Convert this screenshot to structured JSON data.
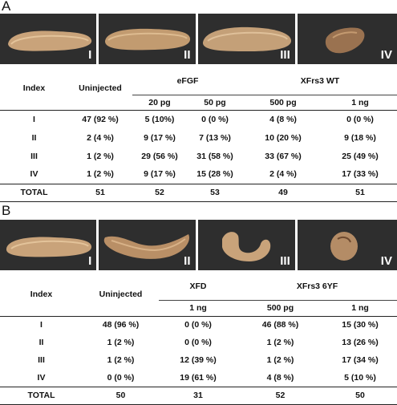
{
  "panelA": {
    "letter": "A",
    "images": [
      {
        "label": "I",
        "shape": "elongated-embryo"
      },
      {
        "label": "II",
        "shape": "elongated-embryo"
      },
      {
        "label": "III",
        "shape": "elongated-embryo"
      },
      {
        "label": "IV",
        "shape": "truncated-embryo"
      }
    ],
    "headers": {
      "index": "Index",
      "uninjected": "Uninjected",
      "group1": "eFGF",
      "group2": "XFrs3 WT",
      "g1d1": "20 pg",
      "g1d2": "50 pg",
      "g2d1": "500 pg",
      "g2d2": "1 ng"
    },
    "rows": [
      {
        "index": "I",
        "uninj": "47 (92 %)",
        "c1": "5 (10%)",
        "c2": "0 (0 %)",
        "c3": "4 (8 %)",
        "c4": "0 (0 %)"
      },
      {
        "index": "II",
        "uninj": "2 (4 %)",
        "c1": "9 (17 %)",
        "c2": "7 (13 %)",
        "c3": "10 (20 %)",
        "c4": "9 (18 %)"
      },
      {
        "index": "III",
        "uninj": "1 (2 %)",
        "c1": "29 (56 %)",
        "c2": "31 (58 %)",
        "c3": "33 (67 %)",
        "c4": "25 (49 %)"
      },
      {
        "index": "IV",
        "uninj": "1 (2 %)",
        "c1": "9 (17 %)",
        "c2": "15 (28 %)",
        "c3": "2 (4 %)",
        "c4": "17 (33 %)"
      }
    ],
    "total": {
      "index": "TOTAL",
      "uninj": "51",
      "c1": "52",
      "c2": "53",
      "c3": "49",
      "c4": "51"
    }
  },
  "panelB": {
    "letter": "B",
    "images": [
      {
        "label": "I",
        "shape": "elongated-embryo"
      },
      {
        "label": "II",
        "shape": "bent-embryo"
      },
      {
        "label": "III",
        "shape": "curled-embryo"
      },
      {
        "label": "IV",
        "shape": "round-embryo"
      }
    ],
    "headers": {
      "index": "Index",
      "uninjected": "Uninjected",
      "group1": "XFD",
      "group2": "XFrs3 6YF",
      "g1d1": "1 ng",
      "g2d1": "500 pg",
      "g2d2": "1 ng"
    },
    "rows": [
      {
        "index": "I",
        "uninj": "48 (96 %)",
        "c1": "0 (0 %)",
        "c2": "46 (88 %)",
        "c3": "15 (30 %)"
      },
      {
        "index": "II",
        "uninj": "1 (2 %)",
        "c1": "0 (0 %)",
        "c2": "1 (2 %)",
        "c3": "13 (26 %)"
      },
      {
        "index": "III",
        "uninj": "1 (2 %)",
        "c1": "12 (39 %)",
        "c2": "1 (2 %)",
        "c3": "17 (34 %)"
      },
      {
        "index": "IV",
        "uninj": "0 (0 %)",
        "c1": "19 (61 %)",
        "c2": "4 (8 %)",
        "c3": "5 (10 %)"
      }
    ],
    "total": {
      "index": "TOTAL",
      "uninj": "50",
      "c1": "31",
      "c2": "52",
      "c3": "50"
    }
  }
}
